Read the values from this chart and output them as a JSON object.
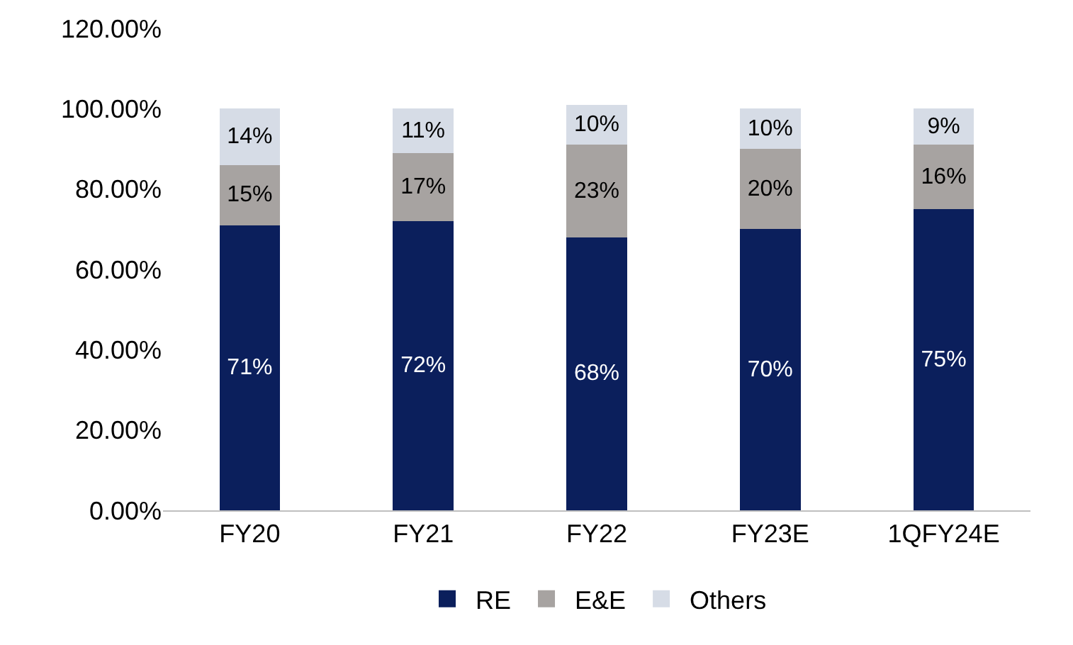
{
  "chart_data": {
    "type": "bar",
    "stacked": true,
    "categories": [
      "FY20",
      "FY21",
      "FY22",
      "FY23E",
      "1QFY24E"
    ],
    "series": [
      {
        "name": "RE",
        "color": "#0b1f5c",
        "values": [
          71,
          72,
          68,
          70,
          75
        ],
        "value_labels": [
          "71%",
          "72%",
          "68%",
          "70%",
          "75%"
        ]
      },
      {
        "name": "E&E",
        "color": "#a7a3a1",
        "values": [
          15,
          17,
          23,
          20,
          16
        ],
        "value_labels": [
          "15%",
          "17%",
          "23%",
          "20%",
          "16%"
        ]
      },
      {
        "name": "Others",
        "color": "#d6dce6",
        "values": [
          14,
          11,
          10,
          10,
          9
        ],
        "value_labels": [
          "14%",
          "11%",
          "10%",
          "10%",
          "9%"
        ]
      }
    ],
    "ylim": [
      0,
      120
    ],
    "yticks": [
      {
        "value": 0,
        "label": "0.00%"
      },
      {
        "value": 20,
        "label": "20.00%"
      },
      {
        "value": 40,
        "label": "40.00%"
      },
      {
        "value": 60,
        "label": "60.00%"
      },
      {
        "value": 80,
        "label": "80.00%"
      },
      {
        "value": 100,
        "label": "100.00%"
      },
      {
        "value": 120,
        "label": "120.00%"
      }
    ],
    "legend": "bottom"
  }
}
